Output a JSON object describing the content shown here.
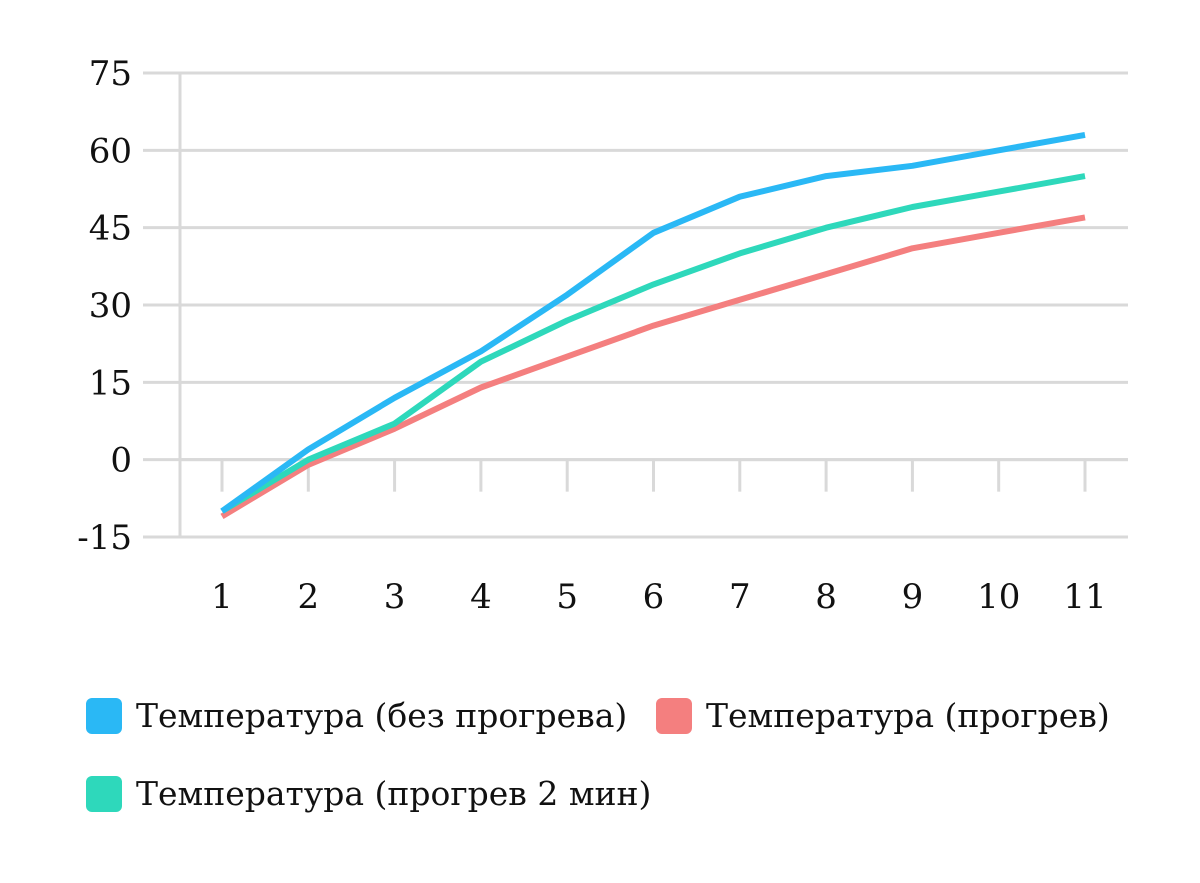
{
  "chart_data": {
    "type": "line",
    "categories": [
      "1",
      "2",
      "3",
      "4",
      "5",
      "6",
      "7",
      "8",
      "9",
      "10",
      "11"
    ],
    "y_ticks": [
      "75",
      "60",
      "45",
      "30",
      "15",
      "0",
      "-15"
    ],
    "ylim": [
      -15,
      75
    ],
    "grid": true,
    "legend_position": "bottom",
    "series": [
      {
        "name": "Температура (без прогрева)",
        "color": "#2ab8f5",
        "values": [
          -10,
          2,
          12,
          21,
          32,
          44,
          51,
          55,
          57,
          60,
          63
        ]
      },
      {
        "name": "Температура (прогрев)",
        "color": "#f47f7f",
        "values": [
          -11,
          -1,
          6,
          14,
          20,
          26,
          31,
          36,
          41,
          44,
          47
        ]
      },
      {
        "name": "Температура (прогрев 2 мин)",
        "color": "#2ed8bb",
        "values": [
          -10,
          0,
          7,
          19,
          27,
          34,
          40,
          45,
          49,
          52,
          55
        ]
      }
    ]
  }
}
